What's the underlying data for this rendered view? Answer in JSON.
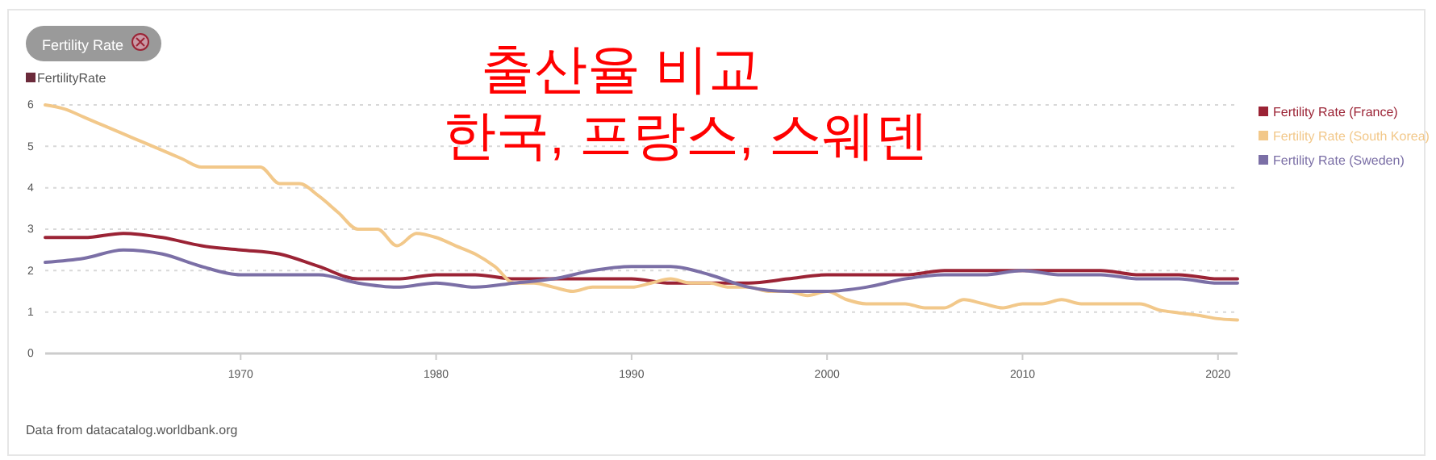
{
  "chart_data": {
    "type": "line",
    "title": "출산율 비교",
    "subtitle": "한국, 프랑스, 스웨덴",
    "ylabel": "FertilityRate",
    "annotations": [
      "Fertility Rate",
      "Data from datacatalog.worldbank.org"
    ],
    "xlim": [
      1960,
      2021
    ],
    "xticks": [
      1970,
      1980,
      1990,
      2000,
      2010,
      2020
    ],
    "ylim": [
      0,
      6
    ],
    "yticks": [
      0,
      1,
      2,
      3,
      4,
      5,
      6
    ],
    "grid": "y",
    "legend": "top right",
    "marker": "none",
    "line_style": "solid",
    "series": [
      {
        "name": "Fertility Rate (France)",
        "color": "#9b2335",
        "x": [
          1960,
          1962,
          1964,
          1966,
          1968,
          1970,
          1972,
          1974,
          1976,
          1978,
          1980,
          1982,
          1984,
          1986,
          1988,
          1990,
          1992,
          1994,
          1996,
          1998,
          2000,
          2002,
          2004,
          2006,
          2008,
          2010,
          2012,
          2014,
          2016,
          2018,
          2020,
          2021
        ],
        "values": [
          2.8,
          2.8,
          2.9,
          2.8,
          2.6,
          2.5,
          2.4,
          2.1,
          1.8,
          1.8,
          1.9,
          1.9,
          1.8,
          1.8,
          1.8,
          1.8,
          1.7,
          1.7,
          1.7,
          1.8,
          1.9,
          1.9,
          1.9,
          2.0,
          2.0,
          2.0,
          2.0,
          2.0,
          1.9,
          1.9,
          1.8,
          1.8
        ]
      },
      {
        "name": "Fertility Rate (South Korea)",
        "color": "#f2c88a",
        "x": [
          1960,
          1961,
          1962,
          1963,
          1964,
          1965,
          1966,
          1967,
          1968,
          1969,
          1970,
          1971,
          1972,
          1973,
          1974,
          1975,
          1976,
          1977,
          1978,
          1979,
          1980,
          1981,
          1982,
          1983,
          1984,
          1985,
          1986,
          1987,
          1988,
          1989,
          1990,
          1991,
          1992,
          1993,
          1994,
          1995,
          1996,
          1997,
          1998,
          1999,
          2000,
          2001,
          2002,
          2003,
          2004,
          2005,
          2006,
          2007,
          2008,
          2009,
          2010,
          2011,
          2012,
          2013,
          2014,
          2015,
          2016,
          2017,
          2018,
          2019,
          2020,
          2021
        ],
        "values": [
          6.0,
          5.9,
          5.7,
          5.5,
          5.3,
          5.1,
          4.9,
          4.7,
          4.5,
          4.5,
          4.5,
          4.5,
          4.1,
          4.1,
          3.8,
          3.4,
          3.0,
          3.0,
          2.6,
          2.9,
          2.8,
          2.6,
          2.4,
          2.1,
          1.7,
          1.7,
          1.6,
          1.5,
          1.6,
          1.6,
          1.6,
          1.7,
          1.8,
          1.7,
          1.7,
          1.6,
          1.6,
          1.5,
          1.5,
          1.4,
          1.5,
          1.3,
          1.2,
          1.2,
          1.2,
          1.1,
          1.1,
          1.3,
          1.2,
          1.1,
          1.2,
          1.2,
          1.3,
          1.2,
          1.2,
          1.2,
          1.2,
          1.05,
          0.98,
          0.92,
          0.84,
          0.81
        ]
      },
      {
        "name": "Fertility Rate (Sweden)",
        "color": "#7b6fa6",
        "x": [
          1960,
          1962,
          1964,
          1966,
          1968,
          1970,
          1972,
          1974,
          1976,
          1978,
          1980,
          1982,
          1984,
          1986,
          1988,
          1990,
          1992,
          1994,
          1996,
          1998,
          2000,
          2002,
          2004,
          2006,
          2008,
          2010,
          2012,
          2014,
          2016,
          2018,
          2020,
          2021
        ],
        "values": [
          2.2,
          2.3,
          2.5,
          2.4,
          2.1,
          1.9,
          1.9,
          1.9,
          1.7,
          1.6,
          1.7,
          1.6,
          1.7,
          1.8,
          2.0,
          2.1,
          2.1,
          1.9,
          1.6,
          1.5,
          1.5,
          1.6,
          1.8,
          1.9,
          1.9,
          2.0,
          1.9,
          1.9,
          1.8,
          1.8,
          1.7,
          1.7
        ]
      }
    ]
  }
}
